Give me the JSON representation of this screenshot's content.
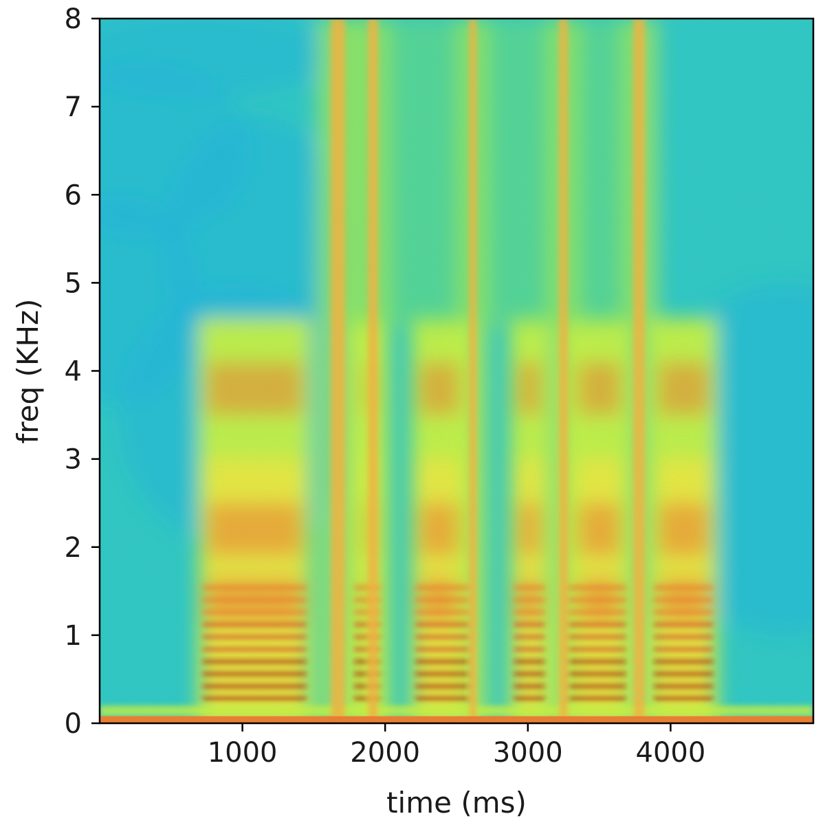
{
  "chart_data": {
    "type": "heatmap",
    "title": "",
    "xlabel": "time (ms)",
    "ylabel": "freq (KHz)",
    "xlim": [
      0,
      5000
    ],
    "ylim": [
      0,
      8
    ],
    "x_ticks": [
      1000,
      2000,
      3000,
      4000
    ],
    "y_ticks": [
      0,
      1,
      2,
      3,
      4,
      5,
      6,
      7,
      8
    ],
    "grid": false,
    "colormap": [
      "#2b6fd6",
      "#1fb4d6",
      "#38d0a8",
      "#7fe35a",
      "#c8f03c",
      "#f2e33a",
      "#f7b23a",
      "#ef7a2a",
      "#d8401a",
      "#a81808"
    ],
    "voiced_segments_ms": [
      [
        690,
        1480
      ],
      [
        1750,
        2000
      ],
      [
        2180,
        2620
      ],
      [
        2870,
        3150
      ],
      [
        3250,
        3720
      ],
      [
        3850,
        4330
      ]
    ],
    "fricative_segments_ms": [
      [
        1620,
        1720
      ],
      [
        1880,
        1950
      ],
      [
        2590,
        2640
      ],
      [
        3220,
        3280
      ],
      [
        3740,
        3820
      ]
    ]
  }
}
